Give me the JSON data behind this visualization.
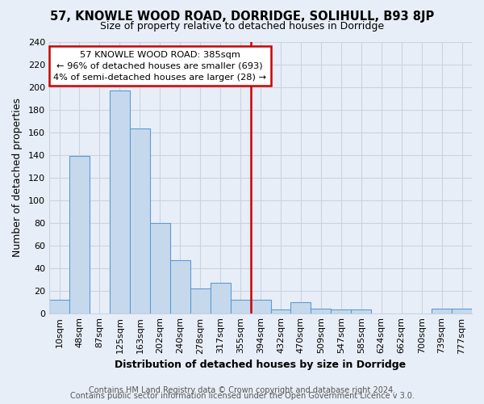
{
  "title": "57, KNOWLE WOOD ROAD, DORRIDGE, SOLIHULL, B93 8JP",
  "subtitle": "Size of property relative to detached houses in Dorridge",
  "xlabel": "Distribution of detached houses by size in Dorridge",
  "ylabel": "Number of detached properties",
  "bin_labels": [
    "10sqm",
    "48sqm",
    "87sqm",
    "125sqm",
    "163sqm",
    "202sqm",
    "240sqm",
    "278sqm",
    "317sqm",
    "355sqm",
    "394sqm",
    "432sqm",
    "470sqm",
    "509sqm",
    "547sqm",
    "585sqm",
    "624sqm",
    "662sqm",
    "700sqm",
    "739sqm",
    "777sqm"
  ],
  "bar_heights": [
    12,
    139,
    0,
    197,
    163,
    80,
    47,
    22,
    27,
    12,
    12,
    3,
    10,
    4,
    3,
    3,
    0,
    0,
    0,
    4,
    4
  ],
  "bar_color": "#c6d9ec",
  "bar_edge_color": "#5b9bd5",
  "vline_color": "#cc0000",
  "annotation_text": "57 KNOWLE WOOD ROAD: 385sqm\n← 96% of detached houses are smaller (693)\n4% of semi-detached houses are larger (28) →",
  "annotation_box_color": "#ffffff",
  "annotation_box_edge": "#cc0000",
  "footer1": "Contains HM Land Registry data © Crown copyright and database right 2024.",
  "footer2": "Contains public sector information licensed under the Open Government Licence v 3.0.",
  "ylim": [
    0,
    240
  ],
  "yticks": [
    0,
    20,
    40,
    60,
    80,
    100,
    120,
    140,
    160,
    180,
    200,
    220,
    240
  ],
  "background_color": "#e8eef7",
  "grid_color": "#c8d4e3",
  "title_fontsize": 10.5,
  "subtitle_fontsize": 9,
  "axis_label_fontsize": 9,
  "tick_fontsize": 8,
  "footer_fontsize": 7
}
